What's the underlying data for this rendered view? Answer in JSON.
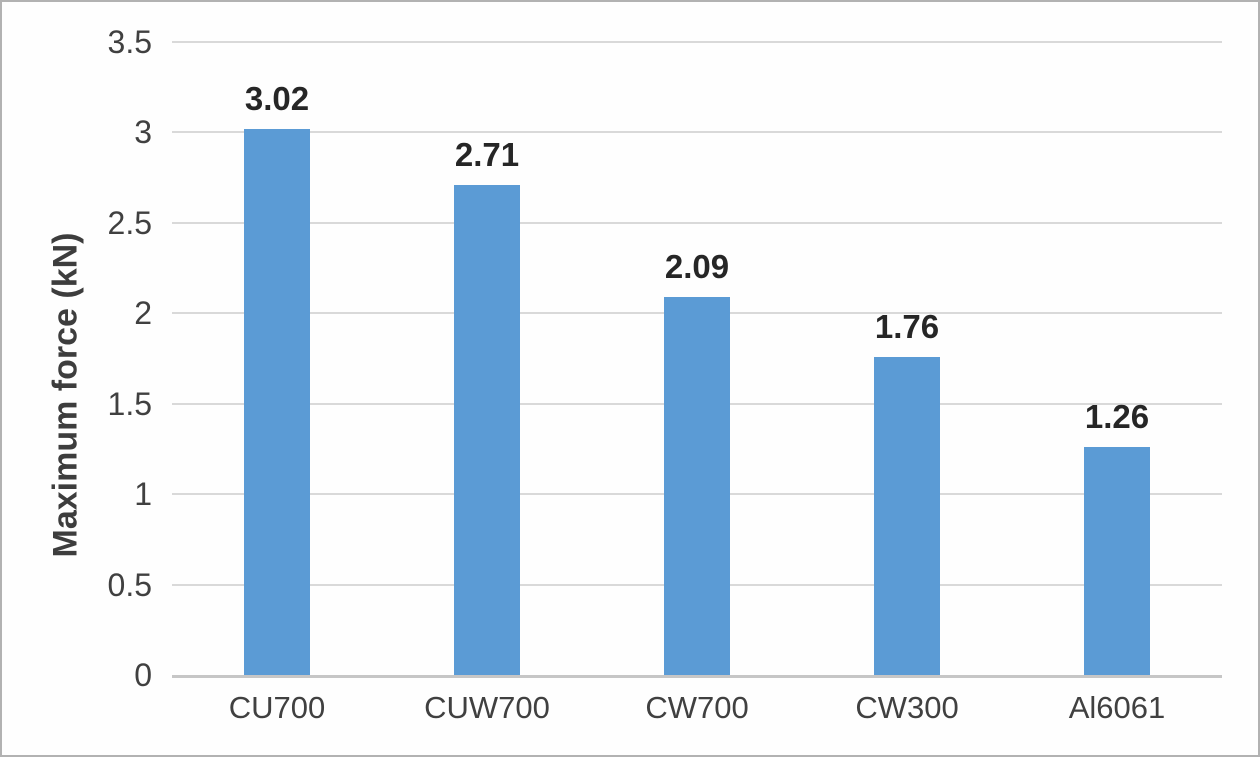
{
  "chart_data": {
    "type": "bar",
    "categories": [
      "CU700",
      "CUW700",
      "CW700",
      "CW300",
      "Al6061"
    ],
    "values": [
      3.02,
      2.71,
      2.09,
      1.76,
      1.26
    ],
    "value_labels": [
      "3.02",
      "2.71",
      "2.09",
      "1.76",
      "1.26"
    ],
    "title": "",
    "xlabel": "",
    "ylabel": "Maximum force (kN)",
    "ylim": [
      0,
      3.5
    ],
    "yticks": [
      3.5,
      3,
      2.5,
      2,
      1.5,
      1,
      0.5,
      0
    ],
    "grid": true,
    "legend": false,
    "bar_color": "#5b9bd5",
    "gridline_color": "#d9d9d9",
    "axis_line_color": "#c6c6c6",
    "tick_text_color": "#404040",
    "value_text_color": "#262626"
  }
}
